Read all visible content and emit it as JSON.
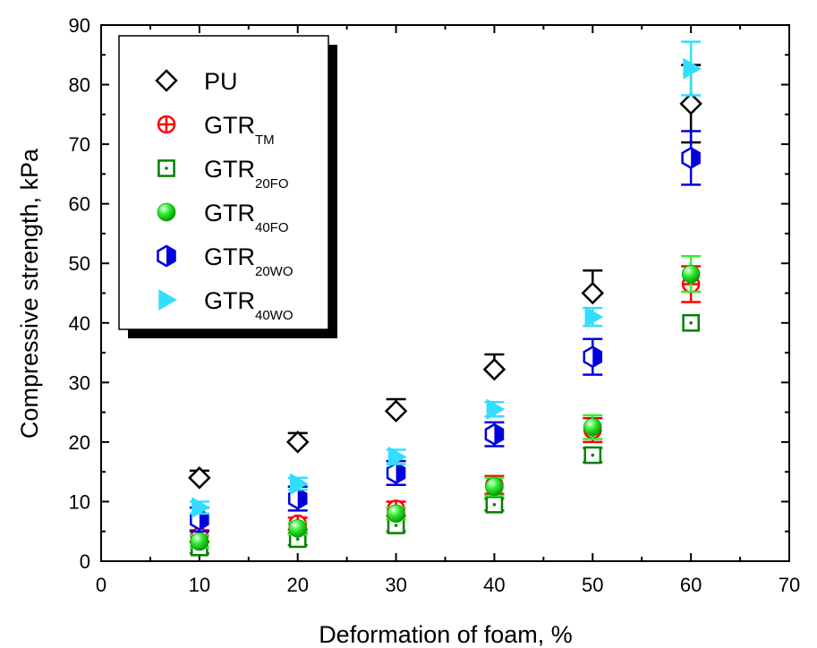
{
  "chart_data": {
    "type": "scatter",
    "xlabel": "Deformation of foam, %",
    "ylabel": "Compressive strength, kPa",
    "xlim": [
      0,
      70
    ],
    "ylim": [
      0,
      90
    ],
    "x_ticks": [
      0,
      10,
      20,
      30,
      40,
      50,
      60,
      70
    ],
    "y_ticks": [
      0,
      10,
      20,
      30,
      40,
      50,
      60,
      70,
      80,
      90
    ],
    "x_minor_step": 5,
    "y_minor_step": 5,
    "grid": false,
    "legend_position": "top-left",
    "series": [
      {
        "name": "PU",
        "name_main": "PU",
        "name_sub": "",
        "marker": "diamond-open",
        "color": "#000000",
        "x": [
          10,
          20,
          30,
          40,
          50,
          60
        ],
        "y": [
          14,
          20,
          25.2,
          32.2,
          45,
          76.8
        ],
        "err_up": [
          1.2,
          1.5,
          2,
          2.5,
          3.8,
          6.5
        ],
        "err_down": [
          0,
          0,
          0,
          0,
          0,
          6.5
        ]
      },
      {
        "name": "GTR_TM",
        "name_main": "GTR",
        "name_sub": "TM",
        "marker": "circle-plus",
        "color": "#ff0000",
        "x": [
          10,
          20,
          30,
          40,
          50,
          60
        ],
        "y": [
          4.2,
          6.3,
          8.8,
          12.8,
          22,
          46.5
        ],
        "err_up": [
          1,
          1,
          1.2,
          1.5,
          2,
          3
        ],
        "err_down": [
          1,
          1,
          1.2,
          1.5,
          2,
          3
        ]
      },
      {
        "name": "GTR_20FO",
        "name_main": "GTR",
        "name_sub": "20FO",
        "marker": "square-dot",
        "color": "#008000",
        "x": [
          10,
          20,
          30,
          40,
          50,
          60
        ],
        "y": [
          2.3,
          3.7,
          6,
          9.5,
          17.8,
          40
        ],
        "err_up": [
          1,
          1,
          1,
          1,
          1.2,
          0
        ],
        "err_down": [
          1,
          1,
          1,
          1,
          1.2,
          0
        ]
      },
      {
        "name": "GTR_40FO",
        "name_main": "GTR",
        "name_sub": "40FO",
        "marker": "sphere",
        "color": "#33ee33",
        "x": [
          10,
          20,
          30,
          40,
          50,
          60
        ],
        "y": [
          3.3,
          5.5,
          8,
          12.5,
          22.5,
          48.2
        ],
        "err_up": [
          1,
          1,
          1,
          1.5,
          2,
          3
        ],
        "err_down": [
          1,
          1,
          1,
          1.5,
          2,
          3
        ]
      },
      {
        "name": "GTR_20WO",
        "name_main": "GTR",
        "name_sub": "20WO",
        "marker": "hexagon-half",
        "color": "#0000dd",
        "x": [
          10,
          20,
          30,
          40,
          50,
          60
        ],
        "y": [
          7,
          10.5,
          14.8,
          21.3,
          34.3,
          67.7
        ],
        "err_up": [
          2,
          2,
          2,
          2,
          3,
          4.5
        ],
        "err_down": [
          2,
          2,
          2,
          2,
          3,
          4.5
        ]
      },
      {
        "name": "GTR_40WO",
        "name_main": "GTR",
        "name_sub": "40WO",
        "marker": "triangle-right",
        "color": "#33ddff",
        "x": [
          10,
          20,
          30,
          40,
          50,
          60
        ],
        "y": [
          9,
          13,
          17.5,
          25.5,
          41,
          82.7
        ],
        "err_up": [
          1,
          1,
          1.2,
          1.2,
          1.5,
          4.5
        ],
        "err_down": [
          1,
          1,
          1.2,
          1.2,
          1.5,
          4.5
        ]
      }
    ]
  }
}
